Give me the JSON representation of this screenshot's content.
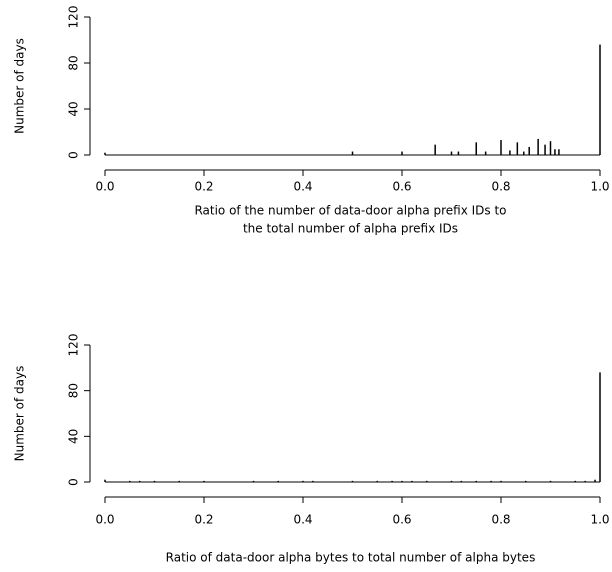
{
  "chart_data": [
    {
      "type": "spike",
      "color": "#000000",
      "ylabel": "Number of days",
      "xlabel": [
        "Ratio of the number of data-door alpha prefix IDs to",
        "the total number of alpha prefix IDs"
      ],
      "x": [
        0.0,
        0.5,
        0.6,
        0.667,
        0.7,
        0.714,
        0.75,
        0.769,
        0.8,
        0.818,
        0.833,
        0.846,
        0.857,
        0.875,
        0.889,
        0.9,
        0.909,
        0.917,
        1.0
      ],
      "values": [
        2,
        3,
        3,
        9,
        3,
        3,
        11,
        3,
        13,
        4,
        11,
        3,
        7,
        14,
        9,
        12,
        5,
        5,
        96
      ],
      "xlim": [
        0,
        1
      ],
      "ylim": [
        0,
        120
      ],
      "xticks": [
        {
          "value": 0,
          "label": "0.0"
        },
        0.2,
        0.4,
        0.6,
        0.8,
        {
          "value": 1,
          "label": "1.0"
        }
      ],
      "yticks": [
        0,
        40,
        80,
        120
      ]
    },
    {
      "type": "spike",
      "color": "#000000",
      "ylabel": "Number of days",
      "xlabel": [
        "Ratio of data-door alpha bytes to total number of alpha bytes"
      ],
      "x": [
        0.0,
        0.05,
        0.07,
        0.1,
        0.15,
        0.2,
        0.3,
        0.35,
        0.4,
        0.42,
        0.5,
        0.55,
        0.58,
        0.6,
        0.62,
        0.65,
        0.7,
        0.72,
        0.75,
        0.78,
        0.8,
        0.85,
        0.9,
        0.95,
        0.97,
        0.99,
        1.0
      ],
      "values": [
        2,
        1,
        1,
        1,
        1,
        1,
        1,
        1,
        1,
        1,
        1,
        1,
        1,
        1,
        1,
        1,
        1,
        1,
        1,
        1,
        1,
        1,
        1,
        1,
        1,
        2,
        96
      ],
      "xlim": [
        0,
        1
      ],
      "ylim": [
        0,
        120
      ],
      "xticks": [
        {
          "value": 0,
          "label": "0.0"
        },
        0.2,
        0.4,
        0.6,
        0.8,
        {
          "value": 1,
          "label": "1.0"
        }
      ],
      "yticks": [
        0,
        40,
        80,
        120
      ]
    }
  ]
}
